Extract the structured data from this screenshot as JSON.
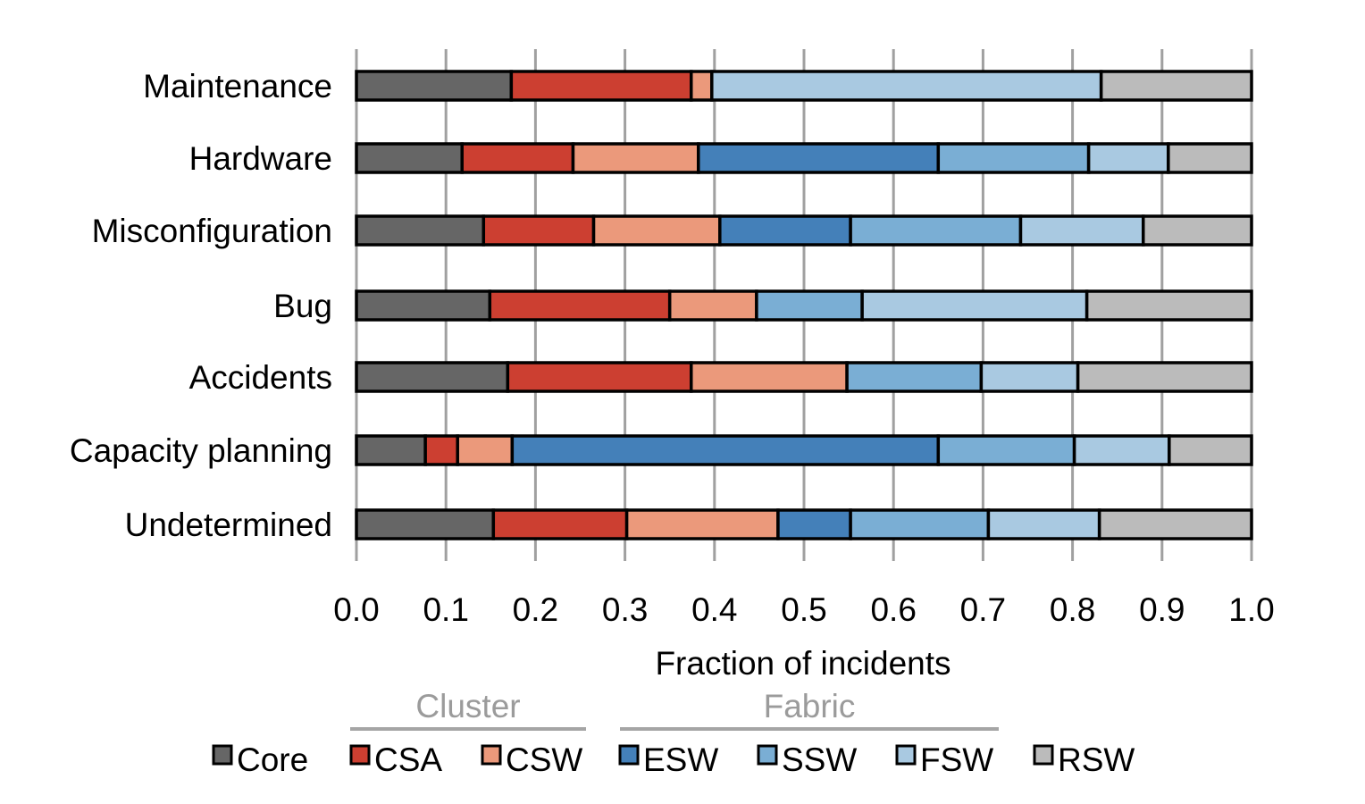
{
  "chart_data": {
    "type": "bar",
    "orientation": "horizontal",
    "stacked": true,
    "title": "",
    "xlabel": "Fraction of incidents",
    "ylabel": "",
    "xlim": [
      0.0,
      1.0
    ],
    "xticks": [
      "0.0",
      "0.1",
      "0.2",
      "0.3",
      "0.4",
      "0.5",
      "0.6",
      "0.7",
      "0.8",
      "0.9",
      "1.0"
    ],
    "grid": "vertical",
    "categories": [
      "Maintenance",
      "Hardware",
      "Misconfiguration",
      "Bug",
      "Accidents",
      "Capacity planning",
      "Undetermined"
    ],
    "series": [
      {
        "name": "Core",
        "color": "#666666",
        "values": [
          0.173,
          0.118,
          0.142,
          0.149,
          0.169,
          0.077,
          0.153
        ]
      },
      {
        "name": "CSA",
        "color": "#cc3f31",
        "values": [
          0.201,
          0.124,
          0.123,
          0.201,
          0.205,
          0.036,
          0.149
        ]
      },
      {
        "name": "CSW",
        "color": "#eb997b",
        "values": [
          0.023,
          0.14,
          0.141,
          0.097,
          0.174,
          0.061,
          0.169
        ]
      },
      {
        "name": "ESW",
        "color": "#4480b9",
        "values": [
          0.0,
          0.268,
          0.146,
          0.0,
          0.0,
          0.476,
          0.081
        ]
      },
      {
        "name": "SSW",
        "color": "#7aaed4",
        "values": [
          0.0,
          0.168,
          0.19,
          0.118,
          0.15,
          0.152,
          0.154
        ]
      },
      {
        "name": "FSW",
        "color": "#a9c9e1",
        "values": [
          0.435,
          0.089,
          0.137,
          0.251,
          0.108,
          0.106,
          0.124
        ]
      },
      {
        "name": "RSW",
        "color": "#bbbbbb",
        "values": [
          0.168,
          0.093,
          0.121,
          0.184,
          0.194,
          0.092,
          0.17
        ]
      }
    ],
    "legend": {
      "placement": "bottom",
      "groups": [
        {
          "label": "Cluster",
          "members": [
            "CSA",
            "CSW"
          ]
        },
        {
          "label": "Fabric",
          "members": [
            "ESW",
            "SSW",
            "FSW"
          ]
        }
      ]
    }
  }
}
